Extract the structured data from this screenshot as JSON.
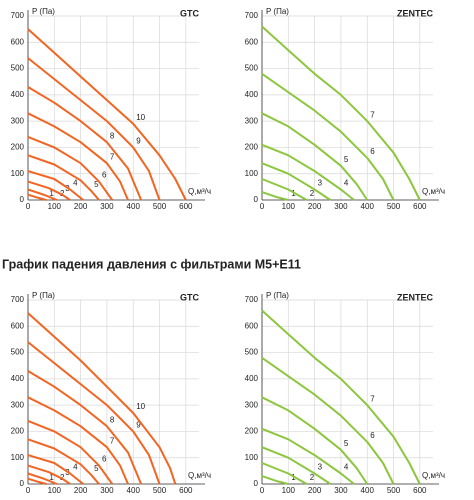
{
  "heading": "График падения давления с фильтрами M5+E11",
  "chart_data": [
    {
      "type": "line",
      "title": "GTC",
      "y_label": "P (Па)",
      "x_label": "Q,м³/ч",
      "xlim": [
        0,
        650
      ],
      "ylim": [
        0,
        700
      ],
      "xticks": [
        0,
        100,
        200,
        300,
        400,
        500,
        600
      ],
      "yticks": [
        0,
        100,
        200,
        300,
        400,
        500,
        600,
        700
      ],
      "grid": true,
      "series": [
        {
          "name": "1",
          "color": "#f26522",
          "x": [
            0,
            40,
            70
          ],
          "values": [
            20,
            8,
            0
          ]
        },
        {
          "name": "2",
          "color": "#f26522",
          "x": [
            0,
            60,
            110
          ],
          "values": [
            40,
            20,
            0
          ]
        },
        {
          "name": "3",
          "color": "#f26522",
          "x": [
            0,
            80,
            130,
            160
          ],
          "values": [
            70,
            45,
            20,
            0
          ]
        },
        {
          "name": "4",
          "color": "#f26522",
          "x": [
            0,
            100,
            160,
            210
          ],
          "values": [
            110,
            80,
            40,
            0
          ]
        },
        {
          "name": "5",
          "color": "#f26522",
          "x": [
            0,
            100,
            200,
            240,
            270
          ],
          "values": [
            170,
            135,
            75,
            35,
            0
          ]
        },
        {
          "name": "6",
          "color": "#f26522",
          "x": [
            0,
            100,
            200,
            270,
            320
          ],
          "values": [
            240,
            200,
            140,
            70,
            0
          ]
        },
        {
          "name": "7",
          "color": "#f26522",
          "x": [
            0,
            100,
            200,
            300,
            350,
            380
          ],
          "values": [
            330,
            280,
            220,
            140,
            70,
            0
          ]
        },
        {
          "name": "8",
          "color": "#f26522",
          "x": [
            0,
            100,
            200,
            300,
            380,
            430
          ],
          "values": [
            430,
            370,
            300,
            220,
            120,
            0
          ]
        },
        {
          "name": "9",
          "color": "#f26522",
          "x": [
            0,
            100,
            200,
            300,
            400,
            460,
            500
          ],
          "values": [
            540,
            460,
            380,
            300,
            200,
            110,
            0
          ]
        },
        {
          "name": "10",
          "color": "#f26522",
          "x": [
            0,
            100,
            200,
            300,
            400,
            500,
            560,
            600
          ],
          "values": [
            650,
            560,
            470,
            380,
            290,
            170,
            80,
            0
          ]
        }
      ]
    },
    {
      "type": "line",
      "title": "ZENTEC",
      "y_label": "P (Па)",
      "x_label": "Q,м³/ч",
      "xlim": [
        0,
        650
      ],
      "ylim": [
        0,
        700
      ],
      "xticks": [
        0,
        100,
        200,
        300,
        400,
        500,
        600
      ],
      "yticks": [
        0,
        100,
        200,
        300,
        400,
        500,
        600,
        700
      ],
      "grid": true,
      "series": [
        {
          "name": "1",
          "color": "#8dc63f",
          "x": [
            0,
            60,
            100
          ],
          "values": [
            30,
            10,
            0
          ]
        },
        {
          "name": "2",
          "color": "#8dc63f",
          "x": [
            0,
            100,
            170
          ],
          "values": [
            80,
            40,
            0
          ]
        },
        {
          "name": "3",
          "color": "#8dc63f",
          "x": [
            0,
            100,
            200,
            260
          ],
          "values": [
            140,
            100,
            40,
            0
          ]
        },
        {
          "name": "4",
          "color": "#8dc63f",
          "x": [
            0,
            100,
            200,
            300,
            350
          ],
          "values": [
            210,
            170,
            110,
            40,
            0
          ]
        },
        {
          "name": "5",
          "color": "#8dc63f",
          "x": [
            0,
            100,
            200,
            300,
            360,
            400
          ],
          "values": [
            330,
            280,
            210,
            130,
            60,
            0
          ]
        },
        {
          "name": "6",
          "color": "#8dc63f",
          "x": [
            0,
            100,
            200,
            300,
            400,
            460,
            500
          ],
          "values": [
            480,
            410,
            340,
            260,
            160,
            80,
            0
          ]
        },
        {
          "name": "7",
          "color": "#8dc63f",
          "x": [
            0,
            100,
            200,
            300,
            400,
            500,
            560,
            600
          ],
          "values": [
            660,
            570,
            480,
            400,
            300,
            180,
            80,
            0
          ]
        }
      ]
    },
    {
      "type": "line",
      "title": "GTC",
      "y_label": "P (Па)",
      "x_label": "Q,м³/ч",
      "xlim": [
        0,
        650
      ],
      "ylim": [
        0,
        700
      ],
      "xticks": [
        0,
        100,
        200,
        300,
        400,
        500,
        600
      ],
      "yticks": [
        0,
        100,
        200,
        300,
        400,
        500,
        600,
        700
      ],
      "grid": true,
      "series": [
        {
          "name": "1",
          "color": "#f26522",
          "x": [
            0,
            40,
            70
          ],
          "values": [
            20,
            8,
            0
          ]
        },
        {
          "name": "2",
          "color": "#f26522",
          "x": [
            0,
            60,
            110
          ],
          "values": [
            40,
            20,
            0
          ]
        },
        {
          "name": "3",
          "color": "#f26522",
          "x": [
            0,
            80,
            130,
            160
          ],
          "values": [
            70,
            45,
            20,
            0
          ]
        },
        {
          "name": "4",
          "color": "#f26522",
          "x": [
            0,
            100,
            160,
            210
          ],
          "values": [
            110,
            80,
            40,
            0
          ]
        },
        {
          "name": "5",
          "color": "#f26522",
          "x": [
            0,
            100,
            200,
            240,
            270
          ],
          "values": [
            170,
            135,
            75,
            35,
            0
          ]
        },
        {
          "name": "6",
          "color": "#f26522",
          "x": [
            0,
            100,
            200,
            270,
            320
          ],
          "values": [
            240,
            200,
            140,
            70,
            0
          ]
        },
        {
          "name": "7",
          "color": "#f26522",
          "x": [
            0,
            100,
            200,
            300,
            350,
            380
          ],
          "values": [
            330,
            280,
            220,
            140,
            70,
            0
          ]
        },
        {
          "name": "8",
          "color": "#f26522",
          "x": [
            0,
            100,
            200,
            300,
            380,
            430
          ],
          "values": [
            430,
            370,
            300,
            220,
            120,
            0
          ]
        },
        {
          "name": "9",
          "color": "#f26522",
          "x": [
            0,
            100,
            200,
            300,
            400,
            460,
            500
          ],
          "values": [
            540,
            460,
            380,
            300,
            200,
            110,
            0
          ]
        },
        {
          "name": "10",
          "color": "#f26522",
          "x": [
            0,
            100,
            200,
            300,
            400,
            500,
            540,
            560
          ],
          "values": [
            650,
            560,
            470,
            370,
            270,
            140,
            60,
            0
          ]
        }
      ]
    },
    {
      "type": "line",
      "title": "ZENTEC",
      "y_label": "P (Па)",
      "x_label": "Q,м³/ч",
      "xlim": [
        0,
        650
      ],
      "ylim": [
        0,
        700
      ],
      "xticks": [
        0,
        100,
        200,
        300,
        400,
        500,
        600
      ],
      "yticks": [
        0,
        100,
        200,
        300,
        400,
        500,
        600,
        700
      ],
      "grid": true,
      "series": [
        {
          "name": "1",
          "color": "#8dc63f",
          "x": [
            0,
            60,
            100
          ],
          "values": [
            30,
            10,
            0
          ]
        },
        {
          "name": "2",
          "color": "#8dc63f",
          "x": [
            0,
            100,
            170
          ],
          "values": [
            80,
            40,
            0
          ]
        },
        {
          "name": "3",
          "color": "#8dc63f",
          "x": [
            0,
            100,
            200,
            260
          ],
          "values": [
            140,
            100,
            40,
            0
          ]
        },
        {
          "name": "4",
          "color": "#8dc63f",
          "x": [
            0,
            100,
            200,
            300,
            350
          ],
          "values": [
            210,
            170,
            110,
            40,
            0
          ]
        },
        {
          "name": "5",
          "color": "#8dc63f",
          "x": [
            0,
            100,
            200,
            300,
            360,
            400
          ],
          "values": [
            330,
            280,
            210,
            130,
            60,
            0
          ]
        },
        {
          "name": "6",
          "color": "#8dc63f",
          "x": [
            0,
            100,
            200,
            300,
            400,
            460,
            500
          ],
          "values": [
            480,
            410,
            340,
            260,
            160,
            80,
            0
          ]
        },
        {
          "name": "7",
          "color": "#8dc63f",
          "x": [
            0,
            100,
            200,
            300,
            400,
            500,
            560,
            600
          ],
          "values": [
            660,
            570,
            480,
            400,
            300,
            180,
            80,
            0
          ]
        }
      ]
    }
  ]
}
